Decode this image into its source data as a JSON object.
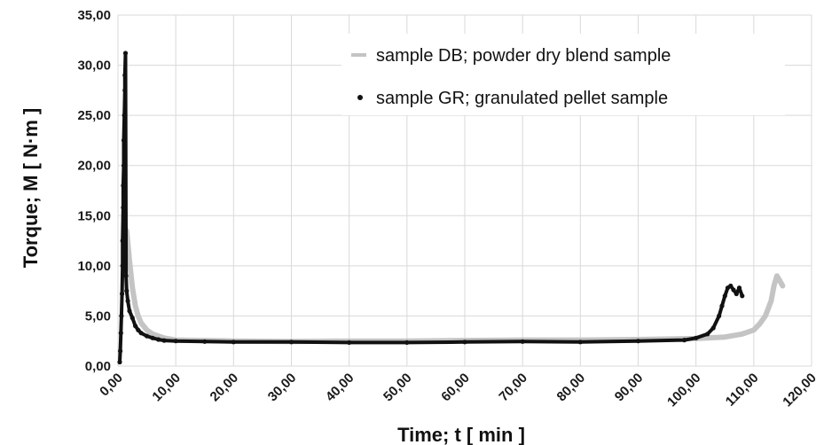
{
  "chart_data": {
    "type": "scatter",
    "title": "",
    "xlabel": "Time; t [ min ]",
    "ylabel": "Torque; M [ N·m ]",
    "xlim": [
      0,
      120
    ],
    "ylim": [
      0,
      35
    ],
    "x_ticks": [
      "0,00",
      "10,00",
      "20,00",
      "30,00",
      "40,00",
      "50,00",
      "60,00",
      "70,00",
      "80,00",
      "90,00",
      "100,00",
      "110,00",
      "120,00"
    ],
    "y_ticks": [
      "0,00",
      "5,00",
      "10,00",
      "15,00",
      "20,00",
      "25,00",
      "30,00",
      "35,00"
    ],
    "grid": true,
    "legend_position": "top-right",
    "series": [
      {
        "name": "sample DB; powder dry blend sample",
        "color": "#c4c4c4",
        "marker": "line",
        "points": [
          [
            1.5,
            13.5
          ],
          [
            2,
            10.5
          ],
          [
            2.5,
            7.8
          ],
          [
            3,
            6.0
          ],
          [
            3.5,
            5.0
          ],
          [
            4,
            4.3
          ],
          [
            5,
            3.6
          ],
          [
            6,
            3.2
          ],
          [
            7,
            3.0
          ],
          [
            8,
            2.8
          ],
          [
            10,
            2.6
          ],
          [
            15,
            2.55
          ],
          [
            20,
            2.5
          ],
          [
            30,
            2.45
          ],
          [
            40,
            2.5
          ],
          [
            50,
            2.5
          ],
          [
            60,
            2.55
          ],
          [
            70,
            2.6
          ],
          [
            80,
            2.6
          ],
          [
            90,
            2.65
          ],
          [
            100,
            2.75
          ],
          [
            105,
            2.9
          ],
          [
            108,
            3.2
          ],
          [
            110,
            3.6
          ],
          [
            111,
            4.2
          ],
          [
            112,
            5.0
          ],
          [
            113,
            6.5
          ],
          [
            113.5,
            8.0
          ],
          [
            114,
            9.0
          ],
          [
            114.5,
            8.5
          ],
          [
            115,
            8.0
          ]
        ]
      },
      {
        "name": "sample GR; granulated pellet sample",
        "color": "#111111",
        "marker": "dot",
        "points": [
          [
            0.3,
            0.4
          ],
          [
            0.4,
            1.5
          ],
          [
            0.5,
            3.3
          ],
          [
            0.6,
            5.0
          ],
          [
            0.7,
            7.2
          ],
          [
            0.8,
            10.0
          ],
          [
            0.8,
            12.5
          ],
          [
            0.9,
            15.8
          ],
          [
            0.9,
            18.0
          ],
          [
            1.0,
            20.0
          ],
          [
            1.0,
            22.5
          ],
          [
            1.1,
            25.0
          ],
          [
            1.2,
            27.5
          ],
          [
            1.2,
            29.0
          ],
          [
            1.3,
            31.2
          ],
          [
            1.4,
            9.0
          ],
          [
            1.5,
            7.5
          ],
          [
            1.7,
            6.5
          ],
          [
            2,
            5.5
          ],
          [
            2.5,
            4.8
          ],
          [
            3,
            4.0
          ],
          [
            3.5,
            3.6
          ],
          [
            4,
            3.3
          ],
          [
            5,
            3.0
          ],
          [
            6,
            2.8
          ],
          [
            7,
            2.65
          ],
          [
            8,
            2.55
          ],
          [
            10,
            2.5
          ],
          [
            15,
            2.45
          ],
          [
            20,
            2.4
          ],
          [
            30,
            2.4
          ],
          [
            40,
            2.35
          ],
          [
            50,
            2.35
          ],
          [
            60,
            2.4
          ],
          [
            70,
            2.45
          ],
          [
            80,
            2.4
          ],
          [
            90,
            2.5
          ],
          [
            98,
            2.6
          ],
          [
            100,
            2.8
          ],
          [
            102,
            3.2
          ],
          [
            103,
            3.8
          ],
          [
            104,
            5.0
          ],
          [
            104.5,
            6.0
          ],
          [
            105,
            7.0
          ],
          [
            105.5,
            7.8
          ],
          [
            106,
            8.0
          ],
          [
            106.5,
            7.6
          ],
          [
            107,
            7.2
          ],
          [
            107.5,
            7.8
          ],
          [
            108,
            7.0
          ]
        ]
      }
    ]
  }
}
